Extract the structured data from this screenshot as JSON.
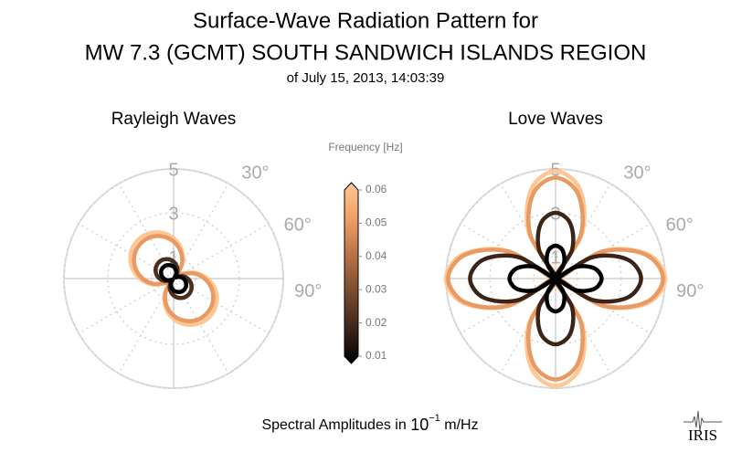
{
  "figure": {
    "title": [
      "Surface-Wave Radiation Pattern for",
      "MW 7.3 (GCMT) SOUTH SANDWICH ISLANDS REGION"
    ],
    "subtitle": "of July 15, 2013, 14:03:39",
    "caption": {
      "text": "Spectral Amplitudes in",
      "base": "10",
      "exponent": "−1",
      "unit": "m/Hz"
    },
    "logo": "IRIS"
  },
  "chart_data": [
    {
      "type": "polar",
      "title": "Rayleigh Waves",
      "x": [
        0,
        15,
        30,
        45,
        60,
        75,
        90,
        105,
        120,
        135,
        150,
        165,
        180,
        195,
        210,
        225,
        240,
        255,
        270,
        285,
        300,
        315,
        330,
        345
      ],
      "rlim": [
        0,
        5
      ],
      "rticks": [
        1,
        3,
        5
      ],
      "thetaticks": [
        {
          "value": 30,
          "label": "30°"
        },
        {
          "value": 60,
          "label": "60°"
        },
        {
          "value": 90,
          "label": "90°"
        }
      ],
      "series": [
        {
          "color": "#ffc794",
          "values": [
            1.84,
            1.38,
            0.82,
            0.21,
            0.42,
            1.02,
            1.54,
            1.97,
            2.26,
            2.39,
            2.36,
            2.17,
            1.84,
            1.38,
            0.82,
            0.21,
            0.42,
            1.02,
            1.54,
            1.97,
            2.26,
            2.39,
            2.36,
            2.17
          ]
        },
        {
          "color": "#e99a62",
          "values": [
            1.69,
            1.26,
            0.75,
            0.19,
            0.38,
            0.93,
            1.41,
            1.8,
            2.07,
            2.19,
            2.17,
            1.99,
            1.69,
            1.26,
            0.75,
            0.19,
            0.38,
            0.93,
            1.41,
            1.8,
            2.07,
            2.19,
            2.17,
            1.99
          ]
        },
        {
          "color": "#4a2e1e",
          "values": [
            0.77,
            0.57,
            0.34,
            0.09,
            0.17,
            0.42,
            0.64,
            0.82,
            0.94,
            1,
            0.99,
            0.91,
            0.77,
            0.57,
            0.34,
            0.09,
            0.17,
            0.42,
            0.64,
            0.82,
            0.94,
            1,
            0.99,
            0.91
          ]
        },
        {
          "color": "#000000",
          "values": [
            0.54,
            0.4,
            0.24,
            0.06,
            0.12,
            0.3,
            0.45,
            0.57,
            0.66,
            0.7,
            0.69,
            0.63,
            0.54,
            0.4,
            0.24,
            0.06,
            0.12,
            0.3,
            0.45,
            0.57,
            0.66,
            0.7,
            0.69,
            0.63
          ]
        }
      ]
    },
    {
      "type": "polar",
      "title": "Love Waves",
      "x": [
        0,
        15,
        30,
        45,
        60,
        75,
        90,
        105,
        120,
        135,
        150,
        165,
        180,
        195,
        210,
        225,
        240,
        255,
        270,
        285,
        300,
        315,
        330,
        345
      ],
      "rlim": [
        0,
        5
      ],
      "rticks": [
        1,
        3,
        5
      ],
      "thetaticks": [
        {
          "value": 30,
          "label": "30°"
        },
        {
          "value": 60,
          "label": "60°"
        },
        {
          "value": 90,
          "label": "90°"
        }
      ],
      "series": [
        {
          "color": "#ffc794",
          "values": [
            4.9,
            4.24,
            2.45,
            0,
            2.5,
            4.33,
            5,
            4.33,
            2.5,
            0,
            2.45,
            4.24,
            4.9,
            4.24,
            2.45,
            0,
            2.5,
            4.33,
            5,
            4.33,
            2.5,
            0,
            2.45,
            4.24
          ]
        },
        {
          "color": "#e99a62",
          "values": [
            4.6,
            3.98,
            2.3,
            0,
            2.45,
            4.24,
            4.9,
            4.24,
            2.45,
            0,
            2.3,
            3.98,
            4.6,
            3.98,
            2.3,
            0,
            2.45,
            4.24,
            4.9,
            4.24,
            2.45,
            0,
            2.3,
            3.98
          ]
        },
        {
          "color": "#3b2417",
          "values": [
            3,
            2.6,
            1.5,
            0,
            1.95,
            3.38,
            3.9,
            3.38,
            1.95,
            0,
            1.5,
            2.6,
            3,
            2.6,
            1.5,
            0,
            1.95,
            3.38,
            3.9,
            3.38,
            1.95,
            0,
            1.5,
            2.6
          ]
        },
        {
          "color": "#000000",
          "values": [
            1.5,
            1.3,
            0.75,
            0,
            1.05,
            1.82,
            2.1,
            1.82,
            1.05,
            0,
            0.75,
            1.3,
            1.5,
            1.3,
            0.75,
            0,
            1.05,
            1.82,
            2.1,
            1.82,
            1.05,
            0,
            0.75,
            1.3
          ]
        }
      ]
    },
    {
      "type": "colorbar",
      "title": "Frequency [Hz]",
      "ylim": [
        0.01,
        0.06
      ],
      "yticks": [
        0.01,
        0.02,
        0.03,
        0.04,
        0.05,
        0.06
      ],
      "colors": [
        "#000000",
        "#3d2618",
        "#7a4c30",
        "#b87248",
        "#f0a066",
        "#ffc794"
      ]
    }
  ]
}
